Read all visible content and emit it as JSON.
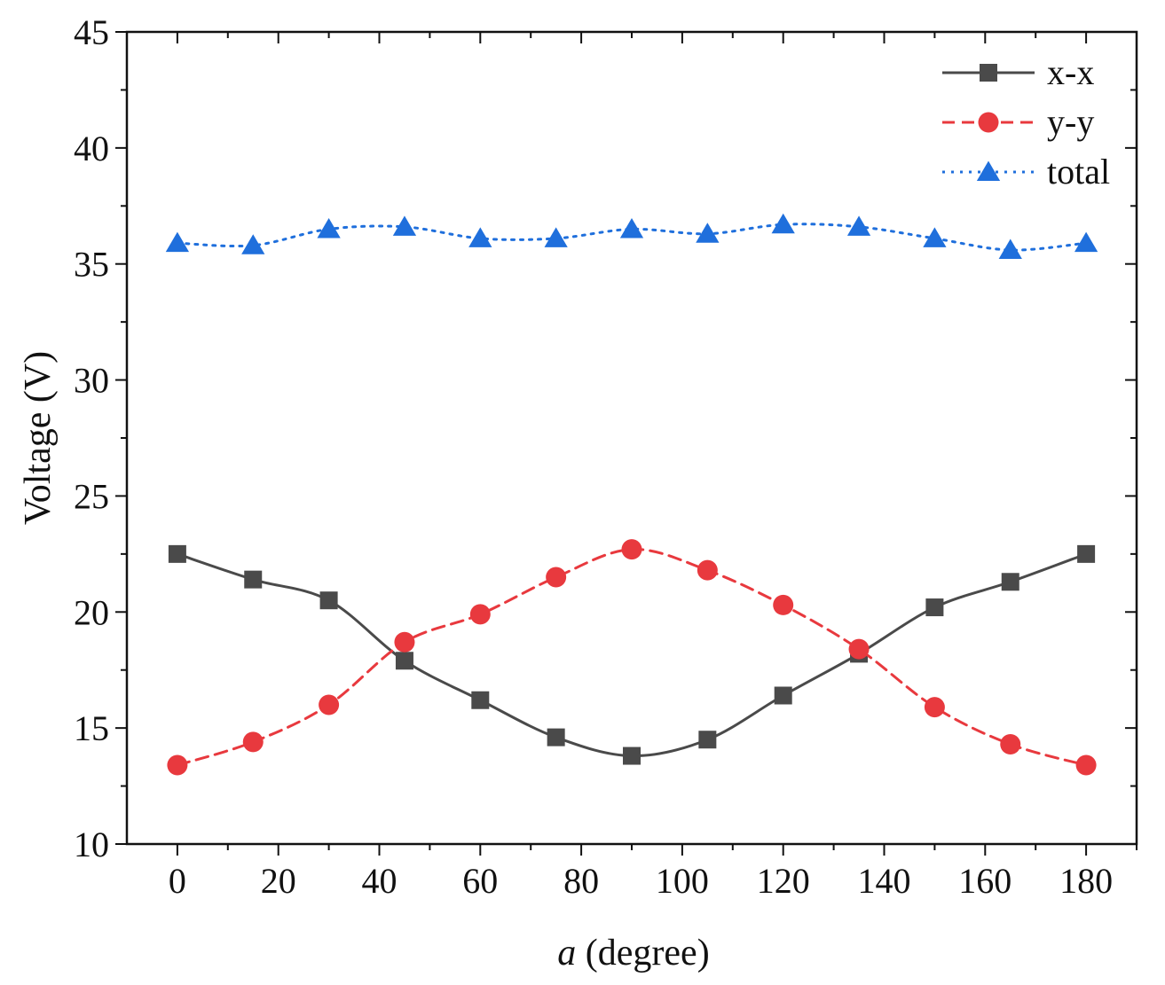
{
  "chart_data": {
    "type": "line",
    "title": "",
    "xlabel_var": "a",
    "xlabel_unit": " (degree)",
    "ylabel": "Voltage (V)",
    "xlim": [
      -10,
      190
    ],
    "ylim": [
      10,
      45
    ],
    "xticks": [
      0,
      20,
      40,
      60,
      80,
      100,
      120,
      140,
      160,
      180
    ],
    "yticks": [
      10,
      15,
      20,
      25,
      30,
      35,
      40,
      45
    ],
    "x": [
      0,
      15,
      30,
      45,
      60,
      75,
      90,
      105,
      120,
      135,
      150,
      165,
      180
    ],
    "legend_position": "top-right",
    "series": [
      {
        "name": "x-x",
        "color": "#4a4a4a",
        "marker": "square",
        "dash": "solid",
        "values": [
          22.5,
          21.4,
          20.5,
          17.9,
          16.2,
          14.6,
          13.8,
          14.5,
          16.4,
          18.2,
          20.2,
          21.3,
          22.5
        ]
      },
      {
        "name": "y-y",
        "color": "#e8393e",
        "marker": "circle",
        "dash": "dashed",
        "values": [
          13.4,
          14.4,
          16.0,
          18.7,
          19.9,
          21.5,
          22.7,
          21.8,
          20.3,
          18.4,
          15.9,
          14.3,
          13.4
        ]
      },
      {
        "name": "total",
        "color": "#1f6fdc",
        "marker": "triangle",
        "dash": "dotted",
        "values": [
          35.9,
          35.8,
          36.5,
          36.6,
          36.1,
          36.1,
          36.5,
          36.3,
          36.7,
          36.6,
          36.1,
          35.6,
          35.9
        ]
      }
    ]
  }
}
